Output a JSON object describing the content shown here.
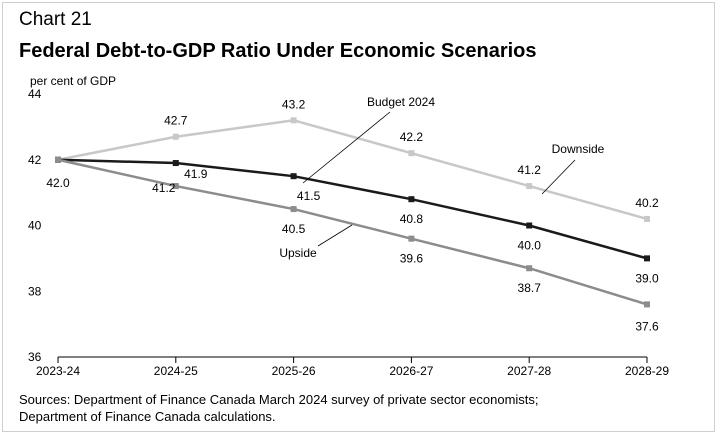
{
  "header": {
    "chart_number": "Chart 21",
    "title": "Federal Debt-to-GDP Ratio Under Economic Scenarios"
  },
  "footer": {
    "sources_line1": "Sources: Department of Finance Canada March 2024 survey of private sector economists;",
    "sources_line2": "Department of Finance Canada calculations."
  },
  "chart_data": {
    "type": "line",
    "title": "Federal Debt-to-GDP Ratio Under Economic Scenarios",
    "ylabel": "per cent of GDP",
    "xlabel": "",
    "categories": [
      "2023-24",
      "2024-25",
      "2025-26",
      "2026-27",
      "2027-28",
      "2028-29"
    ],
    "ylim": [
      36,
      44
    ],
    "yticks": [
      36,
      38,
      40,
      42,
      44
    ],
    "grid": false,
    "legend": "inline labels",
    "series": [
      {
        "name": "Downside",
        "color": "#c8c8c8",
        "values": [
          42.0,
          42.7,
          43.2,
          42.2,
          41.2,
          40.2
        ],
        "value_labels": [
          "",
          "42.7",
          "43.2",
          "42.2",
          "41.2",
          "40.2"
        ]
      },
      {
        "name": "Budget 2024",
        "color": "#1a1a1a",
        "values": [
          42.0,
          41.9,
          41.5,
          40.8,
          40.0,
          39.0
        ],
        "value_labels": [
          "42.0",
          "41.9",
          "41.5",
          "40.8",
          "40.0",
          "39.0"
        ]
      },
      {
        "name": "Upside",
        "color": "#8c8c8c",
        "values": [
          42.0,
          41.2,
          40.5,
          39.6,
          38.7,
          37.6
        ],
        "value_labels": [
          "",
          "41.2",
          "40.5",
          "39.6",
          "38.7",
          "37.6"
        ]
      }
    ]
  }
}
